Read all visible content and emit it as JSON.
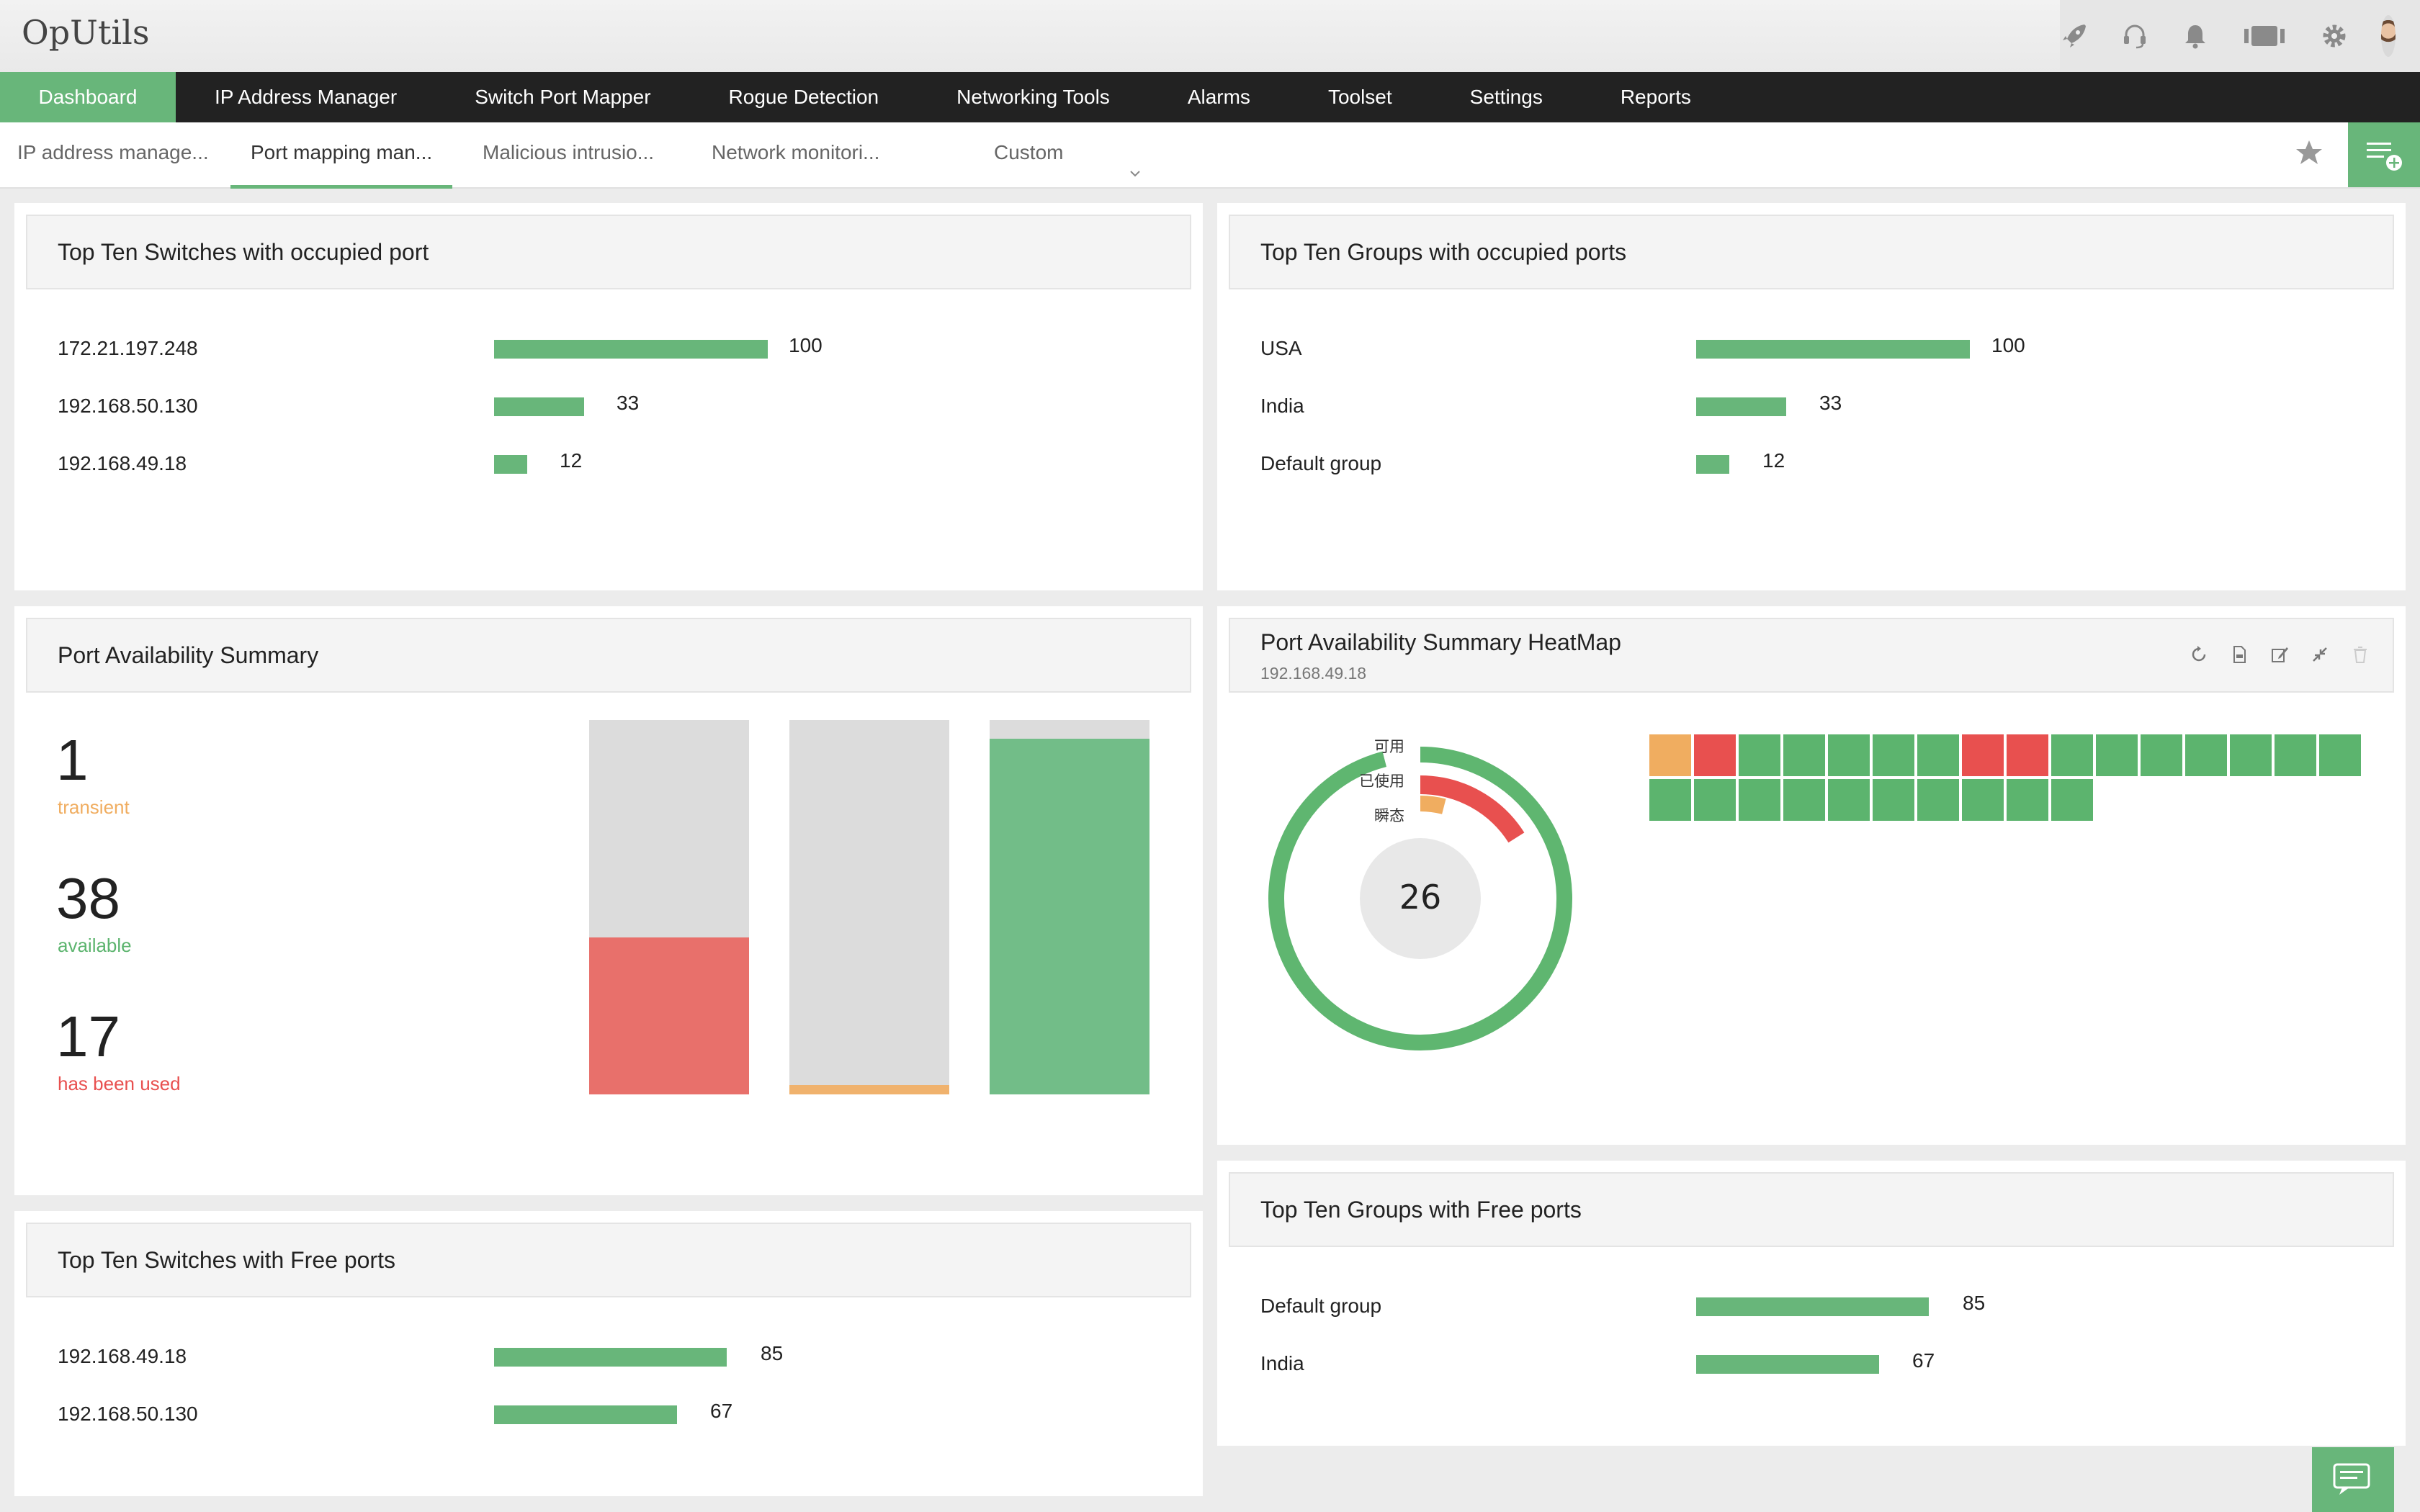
{
  "app": {
    "title": "OpUtils"
  },
  "main_nav": [
    {
      "label": "Dashboard",
      "active": true
    },
    {
      "label": "IP Address Manager"
    },
    {
      "label": "Switch Port Mapper"
    },
    {
      "label": "Rogue Detection"
    },
    {
      "label": "Networking Tools"
    },
    {
      "label": "Alarms"
    },
    {
      "label": "Toolset"
    },
    {
      "label": "Settings"
    },
    {
      "label": "Reports"
    }
  ],
  "sub_tabs": [
    {
      "label": "IP address manage..."
    },
    {
      "label": "Port mapping man...",
      "active": true
    },
    {
      "label": "Malicious intrusio..."
    },
    {
      "label": "Network monitori..."
    }
  ],
  "custom_select": "Custom",
  "header_icons": [
    "rocket-icon",
    "headset-icon",
    "bell-icon",
    "server-icon",
    "gear-icon"
  ],
  "widgets": {
    "top_switches_occupied": {
      "title": "Top Ten Switches with occupied port",
      "rows": [
        {
          "label": "172.21.197.248",
          "value": 100
        },
        {
          "label": "192.168.50.130",
          "value": 33
        },
        {
          "label": "192.168.49.18",
          "value": 12
        }
      ]
    },
    "top_groups_occupied": {
      "title": "Top Ten Groups with occupied ports",
      "rows": [
        {
          "label": "USA",
          "value": 100
        },
        {
          "label": "India",
          "value": 33
        },
        {
          "label": "Default group",
          "value": 12
        }
      ]
    },
    "port_summary": {
      "title": "Port Availability Summary",
      "stats": [
        {
          "value": "1",
          "label": "transient",
          "color": "#f0ad60"
        },
        {
          "value": "38",
          "label": "available",
          "color": "#5cb46e"
        },
        {
          "value": "17",
          "label": "has been used",
          "color": "#e8504f"
        }
      ],
      "columns": [
        {
          "fill": 0.42,
          "color": "#e8706b"
        },
        {
          "fill": 0.025,
          "color": "#f0b26d"
        },
        {
          "fill": 0.95,
          "color": "#72bd88"
        }
      ]
    },
    "heatmap": {
      "title": "Port Availability Summary HeatMap",
      "subtitle": "192.168.49.18",
      "center_value": "26",
      "legend": [
        "可用",
        "已使用",
        "瞬态"
      ],
      "donut": [
        {
          "value": 0.96,
          "color": "#5fb670"
        },
        {
          "value": 0.16,
          "color": "#e8504f"
        },
        {
          "value": 0.04,
          "color": "#f0ad60"
        }
      ],
      "cells_row1": [
        "o",
        "r",
        "g",
        "g",
        "g",
        "g",
        "g",
        "r",
        "r",
        "g",
        "g",
        "g",
        "g",
        "g",
        "g",
        "g"
      ],
      "cells_row2": [
        "g",
        "g",
        "g",
        "g",
        "g",
        "g",
        "g",
        "g",
        "g",
        "g"
      ],
      "colors": {
        "g": "#5cb46e",
        "r": "#e8504f",
        "o": "#f0ad60"
      }
    },
    "top_switches_free": {
      "title": "Top Ten Switches with Free ports",
      "rows": [
        {
          "label": "192.168.49.18",
          "value": 85
        },
        {
          "label": "192.168.50.130",
          "value": 67
        }
      ]
    },
    "top_groups_free": {
      "title": "Top Ten Groups with Free ports",
      "rows": [
        {
          "label": "Default group",
          "value": 85
        },
        {
          "label": "India",
          "value": 67
        }
      ]
    }
  }
}
